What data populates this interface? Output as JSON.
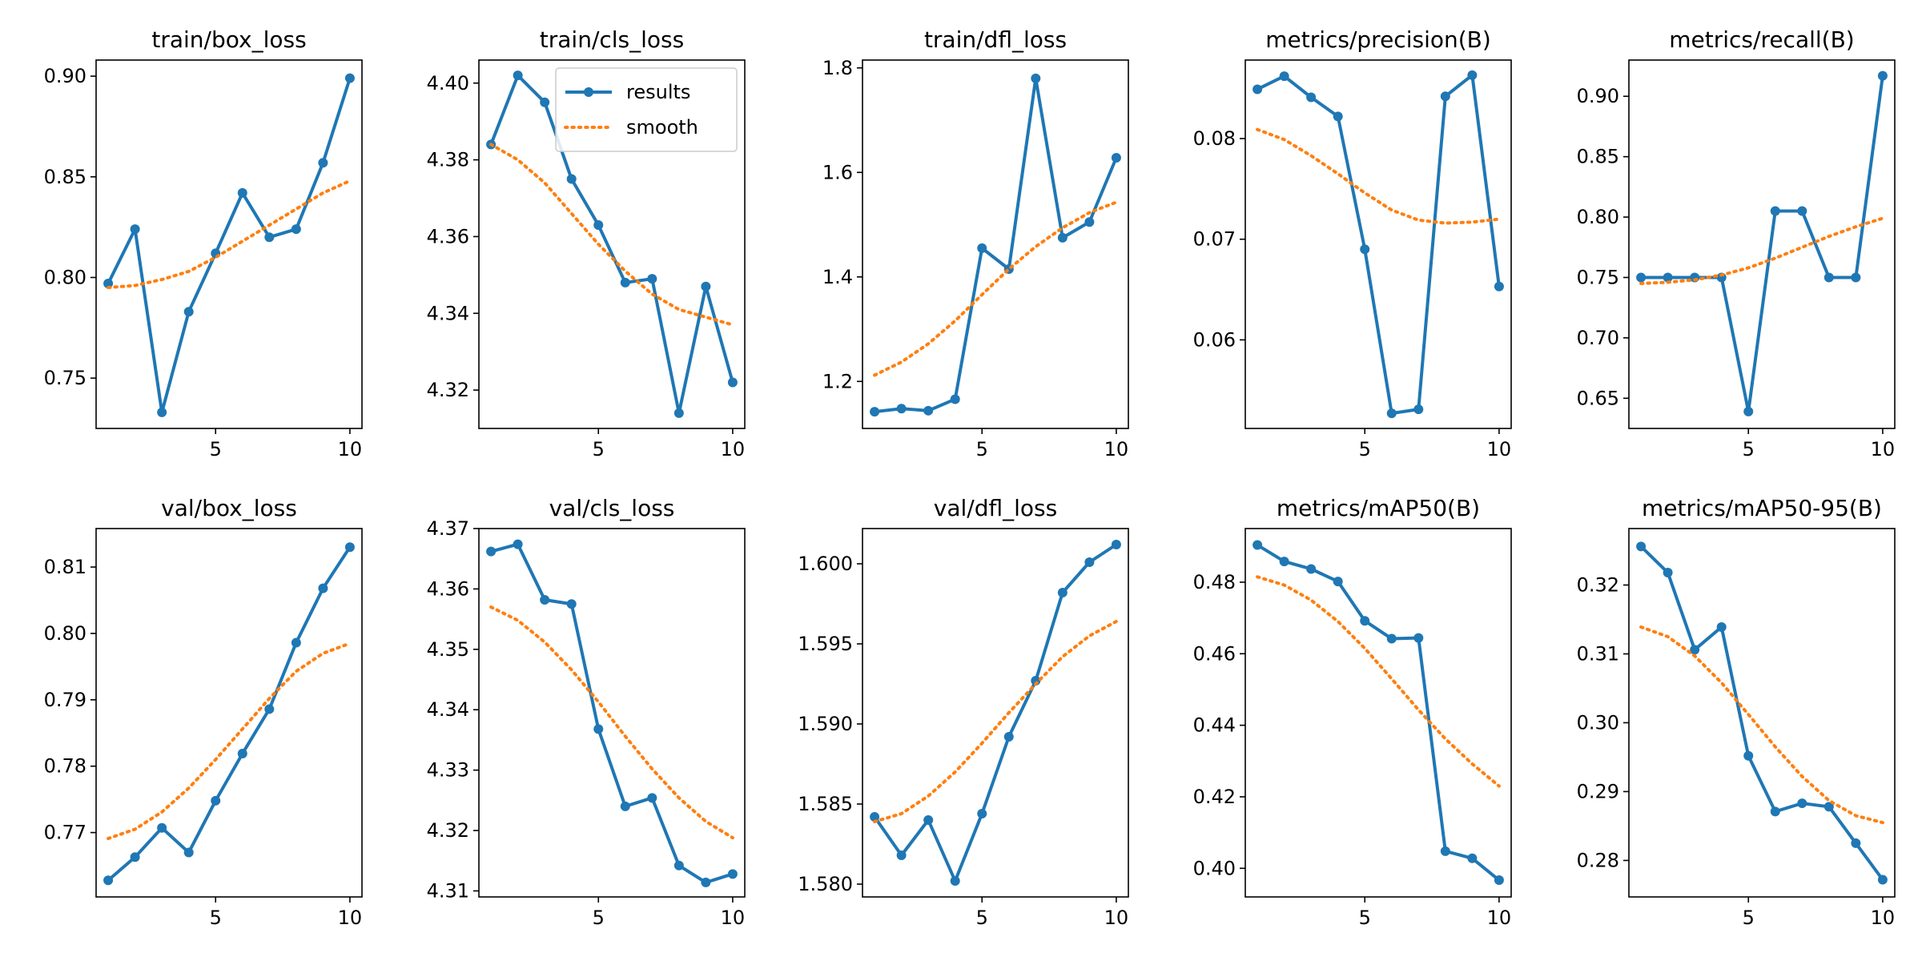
{
  "figure": {
    "background": "#ffffff",
    "colors": {
      "results": "#1f77b4",
      "smooth": "#ff7f0e",
      "axes": "#000000"
    },
    "legend": {
      "placement": "top-right",
      "panel": "train/cls_loss",
      "entries": [
        "results",
        "smooth"
      ]
    }
  },
  "chart_data": [
    {
      "type": "line",
      "title": "train/box_loss",
      "x": [
        1,
        2,
        3,
        4,
        5,
        6,
        7,
        8,
        9,
        10
      ],
      "series": [
        {
          "name": "results",
          "style": "solid-markers",
          "values": [
            0.797,
            0.824,
            0.733,
            0.783,
            0.812,
            0.842,
            0.82,
            0.824,
            0.857,
            0.899
          ]
        },
        {
          "name": "smooth",
          "style": "dotted",
          "values": [
            0.795,
            0.796,
            0.799,
            0.803,
            0.81,
            0.818,
            0.826,
            0.834,
            0.842,
            0.848
          ]
        }
      ],
      "xlim": [
        0.55,
        10.45
      ],
      "ylim": [
        0.725,
        0.908
      ],
      "xticks": [
        5,
        10
      ],
      "xtick_labels": [
        "5",
        "10"
      ],
      "yticks": [
        0.75,
        0.8,
        0.85,
        0.9
      ],
      "ytick_labels": [
        "0.75",
        "0.80",
        "0.85",
        "0.90"
      ],
      "grid": false
    },
    {
      "type": "line",
      "title": "train/cls_loss",
      "x": [
        1,
        2,
        3,
        4,
        5,
        6,
        7,
        8,
        9,
        10
      ],
      "series": [
        {
          "name": "results",
          "style": "solid-markers",
          "values": [
            4.384,
            4.402,
            4.395,
            4.375,
            4.363,
            4.348,
            4.349,
            4.314,
            4.347,
            4.322
          ]
        },
        {
          "name": "smooth",
          "style": "dotted",
          "values": [
            4.384,
            4.38,
            4.374,
            4.366,
            4.358,
            4.351,
            4.345,
            4.341,
            4.339,
            4.337
          ]
        }
      ],
      "xlim": [
        0.55,
        10.45
      ],
      "ylim": [
        4.31,
        4.406
      ],
      "xticks": [
        5,
        10
      ],
      "xtick_labels": [
        "5",
        "10"
      ],
      "yticks": [
        4.32,
        4.34,
        4.36,
        4.38,
        4.4
      ],
      "ytick_labels": [
        "4.32",
        "4.34",
        "4.36",
        "4.38",
        "4.40"
      ],
      "grid": false
    },
    {
      "type": "line",
      "title": "train/dfl_loss",
      "x": [
        1,
        2,
        3,
        4,
        5,
        6,
        7,
        8,
        9,
        10
      ],
      "series": [
        {
          "name": "results",
          "style": "solid-markers",
          "values": [
            1.142,
            1.148,
            1.144,
            1.166,
            1.455,
            1.415,
            1.78,
            1.475,
            1.505,
            1.628
          ]
        },
        {
          "name": "smooth",
          "style": "dotted",
          "values": [
            1.212,
            1.237,
            1.272,
            1.316,
            1.366,
            1.415,
            1.458,
            1.494,
            1.523,
            1.543
          ]
        }
      ],
      "xlim": [
        0.55,
        10.45
      ],
      "ylim": [
        1.11,
        1.815
      ],
      "xticks": [
        5,
        10
      ],
      "xtick_labels": [
        "5",
        "10"
      ],
      "yticks": [
        1.2,
        1.4,
        1.6,
        1.8
      ],
      "ytick_labels": [
        "1.2",
        "1.4",
        "1.6",
        "1.8"
      ],
      "grid": false
    },
    {
      "type": "line",
      "title": "metrics/precision(B)",
      "x": [
        1,
        2,
        3,
        4,
        5,
        6,
        7,
        8,
        9,
        10
      ],
      "series": [
        {
          "name": "results",
          "style": "solid-markers",
          "values": [
            0.0849,
            0.0862,
            0.0841,
            0.0822,
            0.069,
            0.0527,
            0.0531,
            0.0842,
            0.0863,
            0.0653
          ]
        },
        {
          "name": "smooth",
          "style": "dotted",
          "values": [
            0.0809,
            0.0799,
            0.0783,
            0.0765,
            0.0746,
            0.0729,
            0.0719,
            0.0716,
            0.0717,
            0.072
          ]
        }
      ],
      "xlim": [
        0.55,
        10.45
      ],
      "ylim": [
        0.0512,
        0.0878
      ],
      "xticks": [
        5,
        10
      ],
      "xtick_labels": [
        "5",
        "10"
      ],
      "yticks": [
        0.06,
        0.07,
        0.08
      ],
      "ytick_labels": [
        "0.06",
        "0.07",
        "0.08"
      ],
      "grid": false
    },
    {
      "type": "line",
      "title": "metrics/recall(B)",
      "x": [
        1,
        2,
        3,
        4,
        5,
        6,
        7,
        8,
        9,
        10
      ],
      "series": [
        {
          "name": "results",
          "style": "solid-markers",
          "values": [
            0.75,
            0.75,
            0.75,
            0.75,
            0.639,
            0.805,
            0.805,
            0.75,
            0.75,
            0.917
          ]
        },
        {
          "name": "smooth",
          "style": "dotted",
          "values": [
            0.745,
            0.746,
            0.748,
            0.752,
            0.758,
            0.766,
            0.775,
            0.784,
            0.792,
            0.799
          ]
        }
      ],
      "xlim": [
        0.55,
        10.45
      ],
      "ylim": [
        0.625,
        0.93
      ],
      "xticks": [
        5,
        10
      ],
      "xtick_labels": [
        "5",
        "10"
      ],
      "yticks": [
        0.65,
        0.7,
        0.75,
        0.8,
        0.85,
        0.9
      ],
      "ytick_labels": [
        "0.65",
        "0.70",
        "0.75",
        "0.80",
        "0.85",
        "0.90"
      ],
      "grid": false
    },
    {
      "type": "line",
      "title": "val/box_loss",
      "x": [
        1,
        2,
        3,
        4,
        5,
        6,
        7,
        8,
        9,
        10
      ],
      "series": [
        {
          "name": "results",
          "style": "solid-markers",
          "values": [
            0.7628,
            0.7663,
            0.7707,
            0.767,
            0.7748,
            0.7819,
            0.7886,
            0.7986,
            0.8068,
            0.813
          ]
        },
        {
          "name": "smooth",
          "style": "dotted",
          "values": [
            0.7691,
            0.7705,
            0.7731,
            0.7767,
            0.781,
            0.7856,
            0.7902,
            0.7943,
            0.797,
            0.7985
          ]
        }
      ],
      "xlim": [
        0.55,
        10.45
      ],
      "ylim": [
        0.7603,
        0.8158
      ],
      "xticks": [
        5,
        10
      ],
      "xtick_labels": [
        "5",
        "10"
      ],
      "yticks": [
        0.77,
        0.78,
        0.79,
        0.8,
        0.81
      ],
      "ytick_labels": [
        "0.77",
        "0.78",
        "0.79",
        "0.80",
        "0.81"
      ],
      "grid": false
    },
    {
      "type": "line",
      "title": "val/cls_loss",
      "x": [
        1,
        2,
        3,
        4,
        5,
        6,
        7,
        8,
        9,
        10
      ],
      "series": [
        {
          "name": "results",
          "style": "solid-markers",
          "values": [
            4.3662,
            4.3674,
            4.3582,
            4.3575,
            4.3368,
            4.324,
            4.3254,
            4.3142,
            4.3114,
            4.3128
          ]
        },
        {
          "name": "smooth",
          "style": "dotted",
          "values": [
            4.357,
            4.3548,
            4.3512,
            4.3466,
            4.3413,
            4.3356,
            4.3302,
            4.3254,
            4.3215,
            4.3188
          ]
        }
      ],
      "xlim": [
        0.55,
        10.45
      ],
      "ylim": [
        4.309,
        4.37
      ],
      "xticks": [
        5,
        10
      ],
      "xtick_labels": [
        "5",
        "10"
      ],
      "yticks": [
        4.31,
        4.32,
        4.33,
        4.34,
        4.35,
        4.36,
        4.37
      ],
      "ytick_labels": [
        "4.31",
        "4.32",
        "4.33",
        "4.34",
        "4.35",
        "4.36",
        "4.37"
      ],
      "grid": false
    },
    {
      "type": "line",
      "title": "val/dfl_loss",
      "x": [
        1,
        2,
        3,
        4,
        5,
        6,
        7,
        8,
        9,
        10
      ],
      "series": [
        {
          "name": "results",
          "style": "solid-markers",
          "values": [
            1.5842,
            1.5818,
            1.584,
            1.5802,
            1.5844,
            1.5892,
            1.5927,
            1.5982,
            1.6001,
            1.6012
          ]
        },
        {
          "name": "smooth",
          "style": "dotted",
          "values": [
            1.5839,
            1.5844,
            1.5855,
            1.587,
            1.5888,
            1.5907,
            1.5925,
            1.5942,
            1.5955,
            1.5964
          ]
        }
      ],
      "xlim": [
        0.55,
        10.45
      ],
      "ylim": [
        1.5792,
        1.6022
      ],
      "xticks": [
        5,
        10
      ],
      "xtick_labels": [
        "5",
        "10"
      ],
      "yticks": [
        1.58,
        1.585,
        1.59,
        1.595,
        1.6
      ],
      "ytick_labels": [
        "1.580",
        "1.585",
        "1.590",
        "1.595",
        "1.600"
      ],
      "grid": false
    },
    {
      "type": "line",
      "title": "metrics/mAP50(B)",
      "x": [
        1,
        2,
        3,
        4,
        5,
        6,
        7,
        8,
        9,
        10
      ],
      "series": [
        {
          "name": "results",
          "style": "solid-markers",
          "values": [
            0.4904,
            0.4858,
            0.4837,
            0.4802,
            0.4692,
            0.4642,
            0.4644,
            0.4048,
            0.4028,
            0.3967
          ]
        },
        {
          "name": "smooth",
          "style": "dotted",
          "values": [
            0.4815,
            0.4792,
            0.475,
            0.469,
            0.4615,
            0.453,
            0.4443,
            0.4362,
            0.4292,
            0.423
          ]
        }
      ],
      "xlim": [
        0.55,
        10.45
      ],
      "ylim": [
        0.392,
        0.495
      ],
      "xticks": [
        5,
        10
      ],
      "xtick_labels": [
        "5",
        "10"
      ],
      "yticks": [
        0.4,
        0.42,
        0.44,
        0.46,
        0.48
      ],
      "ytick_labels": [
        "0.40",
        "0.42",
        "0.44",
        "0.46",
        "0.48"
      ],
      "grid": false
    },
    {
      "type": "line",
      "title": "metrics/mAP50-95(B)",
      "x": [
        1,
        2,
        3,
        4,
        5,
        6,
        7,
        8,
        9,
        10
      ],
      "series": [
        {
          "name": "results",
          "style": "solid-markers",
          "values": [
            0.3256,
            0.3218,
            0.3106,
            0.3139,
            0.2952,
            0.2871,
            0.2883,
            0.2878,
            0.2825,
            0.2772
          ]
        },
        {
          "name": "smooth",
          "style": "dotted",
          "values": [
            0.3139,
            0.3125,
            0.3097,
            0.3058,
            0.3012,
            0.2965,
            0.2922,
            0.2887,
            0.2865,
            0.2855
          ]
        }
      ],
      "xlim": [
        0.55,
        10.45
      ],
      "ylim": [
        0.2747,
        0.3282
      ],
      "xticks": [
        5,
        10
      ],
      "xtick_labels": [
        "5",
        "10"
      ],
      "yticks": [
        0.28,
        0.29,
        0.3,
        0.31,
        0.32
      ],
      "ytick_labels": [
        "0.28",
        "0.29",
        "0.30",
        "0.31",
        "0.32"
      ],
      "grid": false
    }
  ]
}
